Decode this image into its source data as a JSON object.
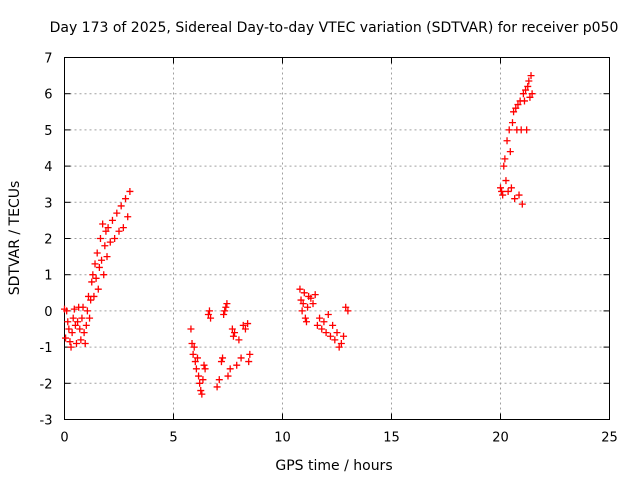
{
  "chart_data": {
    "type": "scatter",
    "title": "Day 173 of 2025, Sidereal Day-to-day VTEC variation (SDTVAR) for receiver p050",
    "xlabel": "GPS time / hours",
    "ylabel": "SDTVAR / TECUs",
    "xlim": [
      0,
      25
    ],
    "ylim": [
      -3,
      7
    ],
    "xticks": [
      0,
      5,
      10,
      15,
      20,
      25
    ],
    "yticks": [
      -3,
      -2,
      -1,
      0,
      1,
      2,
      3,
      4,
      5,
      6,
      7
    ],
    "xtick_labels": [
      "0",
      "5",
      "10",
      "15",
      "20",
      "25"
    ],
    "ytick_labels": [
      "-3",
      "-2",
      "-1",
      "0",
      "1",
      "2",
      "3",
      "4",
      "5",
      "6",
      "7"
    ],
    "grid": true,
    "legend": "none",
    "marker": "plus",
    "color": "#ff0000",
    "series": [
      {
        "values": [
          [
            0.0,
            0.05
          ],
          [
            0.05,
            -0.75
          ],
          [
            0.1,
            0.0
          ],
          [
            0.15,
            -0.3
          ],
          [
            0.2,
            -0.5
          ],
          [
            0.25,
            -0.85
          ],
          [
            0.3,
            -1.0
          ],
          [
            0.35,
            -0.6
          ],
          [
            0.4,
            -0.2
          ],
          [
            0.45,
            0.05
          ],
          [
            0.5,
            -0.4
          ],
          [
            0.55,
            -0.9
          ],
          [
            0.6,
            -0.3
          ],
          [
            0.65,
            0.1
          ],
          [
            0.7,
            -0.5
          ],
          [
            0.75,
            -0.8
          ],
          [
            0.8,
            -0.2
          ],
          [
            0.85,
            0.1
          ],
          [
            0.9,
            -0.6
          ],
          [
            0.95,
            -0.9
          ],
          [
            1.0,
            -0.4
          ],
          [
            1.05,
            0.0
          ],
          [
            1.1,
            0.4
          ],
          [
            1.15,
            -0.2
          ],
          [
            1.2,
            0.3
          ],
          [
            1.25,
            0.8
          ],
          [
            1.3,
            1.0
          ],
          [
            1.35,
            0.4
          ],
          [
            1.4,
            1.3
          ],
          [
            1.45,
            0.9
          ],
          [
            1.5,
            1.6
          ],
          [
            1.55,
            0.6
          ],
          [
            1.6,
            1.2
          ],
          [
            1.65,
            2.0
          ],
          [
            1.7,
            1.4
          ],
          [
            1.75,
            2.4
          ],
          [
            1.8,
            1.0
          ],
          [
            1.85,
            1.8
          ],
          [
            1.9,
            2.2
          ],
          [
            1.95,
            1.5
          ],
          [
            2.0,
            2.3
          ],
          [
            2.1,
            1.9
          ],
          [
            2.2,
            2.5
          ],
          [
            2.3,
            2.0
          ],
          [
            2.4,
            2.7
          ],
          [
            2.5,
            2.2
          ],
          [
            2.6,
            2.9
          ],
          [
            2.7,
            2.3
          ],
          [
            2.8,
            3.1
          ],
          [
            2.9,
            2.6
          ],
          [
            3.0,
            3.3
          ],
          [
            5.8,
            -0.5
          ],
          [
            5.85,
            -0.9
          ],
          [
            5.9,
            -1.2
          ],
          [
            5.95,
            -1.0
          ],
          [
            6.0,
            -1.4
          ],
          [
            6.05,
            -1.6
          ],
          [
            6.1,
            -1.3
          ],
          [
            6.15,
            -1.8
          ],
          [
            6.2,
            -2.0
          ],
          [
            6.25,
            -2.2
          ],
          [
            6.3,
            -2.3
          ],
          [
            6.35,
            -1.9
          ],
          [
            6.4,
            -1.5
          ],
          [
            6.45,
            -1.6
          ],
          [
            6.6,
            -0.1
          ],
          [
            6.65,
            0.0
          ],
          [
            6.7,
            -0.2
          ],
          [
            7.0,
            -2.1
          ],
          [
            7.1,
            -1.9
          ],
          [
            7.2,
            -1.4
          ],
          [
            7.25,
            -1.3
          ],
          [
            7.3,
            -0.1
          ],
          [
            7.35,
            0.0
          ],
          [
            7.4,
            0.1
          ],
          [
            7.45,
            0.2
          ],
          [
            7.5,
            -1.8
          ],
          [
            7.6,
            -1.6
          ],
          [
            7.7,
            -0.5
          ],
          [
            7.75,
            -0.7
          ],
          [
            7.8,
            -0.6
          ],
          [
            7.9,
            -1.5
          ],
          [
            8.0,
            -0.8
          ],
          [
            8.1,
            -1.3
          ],
          [
            8.2,
            -0.4
          ],
          [
            8.3,
            -0.5
          ],
          [
            8.4,
            -0.35
          ],
          [
            8.45,
            -1.4
          ],
          [
            8.5,
            -1.2
          ],
          [
            10.8,
            0.6
          ],
          [
            10.85,
            0.3
          ],
          [
            10.9,
            0.0
          ],
          [
            10.95,
            0.2
          ],
          [
            11.0,
            0.5
          ],
          [
            11.05,
            -0.2
          ],
          [
            11.1,
            -0.3
          ],
          [
            11.15,
            0.1
          ],
          [
            11.2,
            0.4
          ],
          [
            11.3,
            0.35
          ],
          [
            11.4,
            0.2
          ],
          [
            11.5,
            0.45
          ],
          [
            11.6,
            -0.4
          ],
          [
            11.7,
            -0.2
          ],
          [
            11.8,
            -0.5
          ],
          [
            11.9,
            -0.3
          ],
          [
            12.0,
            -0.6
          ],
          [
            12.1,
            -0.1
          ],
          [
            12.2,
            -0.7
          ],
          [
            12.3,
            -0.4
          ],
          [
            12.4,
            -0.8
          ],
          [
            12.5,
            -0.6
          ],
          [
            12.6,
            -1.0
          ],
          [
            12.7,
            -0.9
          ],
          [
            12.8,
            -0.7
          ],
          [
            12.9,
            0.1
          ],
          [
            13.0,
            0.0
          ],
          [
            20.0,
            3.4
          ],
          [
            20.05,
            3.3
          ],
          [
            20.1,
            3.2
          ],
          [
            20.15,
            4.0
          ],
          [
            20.2,
            4.2
          ],
          [
            20.25,
            3.6
          ],
          [
            20.3,
            4.7
          ],
          [
            20.35,
            3.3
          ],
          [
            20.4,
            5.0
          ],
          [
            20.45,
            4.4
          ],
          [
            20.5,
            3.4
          ],
          [
            20.55,
            5.2
          ],
          [
            20.6,
            5.5
          ],
          [
            20.65,
            3.1
          ],
          [
            20.7,
            5.6
          ],
          [
            20.75,
            5.0
          ],
          [
            20.8,
            5.7
          ],
          [
            20.85,
            3.2
          ],
          [
            20.9,
            5.8
          ],
          [
            20.95,
            5.0
          ],
          [
            21.0,
            2.95
          ],
          [
            21.05,
            6.0
          ],
          [
            21.1,
            5.8
          ],
          [
            21.15,
            6.1
          ],
          [
            21.2,
            5.0
          ],
          [
            21.25,
            6.2
          ],
          [
            21.3,
            6.35
          ],
          [
            21.35,
            5.9
          ],
          [
            21.4,
            6.5
          ],
          [
            21.45,
            6.0
          ]
        ]
      }
    ]
  }
}
